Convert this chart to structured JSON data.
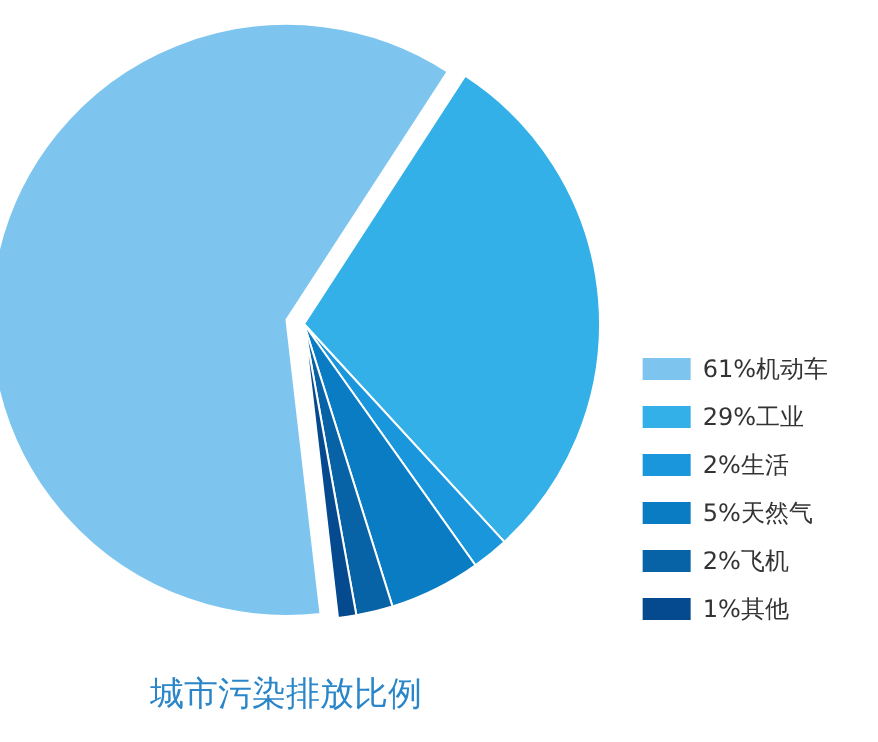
{
  "chart_data": {
    "type": "pie",
    "title": "城市污染排放比例",
    "categories": [
      "61%机动车",
      "29%工业",
      "2%生活",
      "5%天然气",
      "2%飞机",
      "1%其他"
    ],
    "values": [
      61,
      29,
      2,
      5,
      2,
      1
    ],
    "colors": [
      "#7dc5ef",
      "#33b0e8",
      "#1a96dc",
      "#0a7cc4",
      "#0862a6",
      "#054a8f"
    ],
    "legend": "right"
  }
}
